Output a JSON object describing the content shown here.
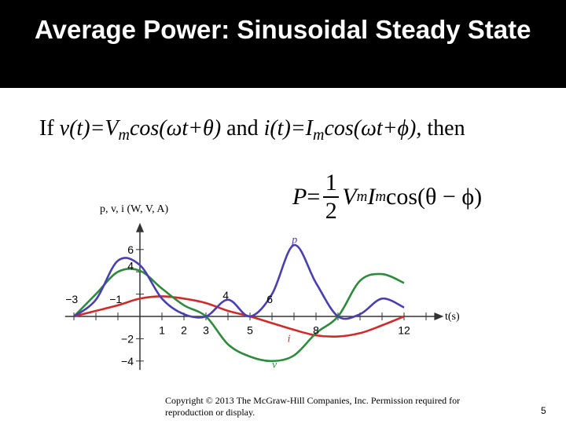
{
  "slide": {
    "title": "Average Power: Sinusoidal Steady State",
    "line": {
      "if": "If ",
      "v_def": "v(t)=V",
      "v_sub": "m",
      "v_rest": "cos(ωt+θ)",
      "and": " and ",
      "i_def": "i(t)=I",
      "i_sub": "m",
      "i_rest": "cos(ωt+ϕ),",
      "then": " then"
    },
    "formula": {
      "lhs": "P",
      "eq": " = ",
      "num": "1",
      "den": "2",
      "V": "V",
      "V_sub": "m",
      "I": "I",
      "I_sub": "m",
      "cos": " cos(θ − ϕ)"
    },
    "copyright": "Copyright © 2013 The McGraw-Hill Companies, Inc. Permission required for reproduction or display.",
    "page_number": "5"
  },
  "chart_data": {
    "type": "line",
    "xlabel": "t(s)",
    "ylabel": "p, v, i (W, V, A)",
    "x_tick_labels": [
      "−3",
      "−1",
      "1",
      "2",
      "3",
      "4",
      "5",
      "6",
      "8",
      "12"
    ],
    "y_tick_labels": [
      "6",
      "4",
      "−2",
      "−4"
    ],
    "xlim": [
      -3.4,
      13.8
    ],
    "ylim": [
      -4.8,
      8.4
    ],
    "series": [
      {
        "name": "p",
        "color": "#4a3fb0",
        "x": [
          -3,
          -2,
          -1,
          0,
          1,
          2,
          3,
          4,
          5,
          6,
          7,
          8,
          9,
          10,
          11,
          12
        ],
        "y": [
          0,
          1.5,
          5,
          4.6,
          1.6,
          0.2,
          0,
          1.5,
          0,
          2,
          6.4,
          3,
          0,
          0.2,
          1.6,
          0.8
        ]
      },
      {
        "name": "v",
        "color": "#2e8b3e",
        "x": [
          -3,
          -2,
          -1,
          0,
          1,
          2,
          3,
          4,
          5,
          6,
          7,
          8,
          9,
          10,
          11,
          12
        ],
        "y": [
          0,
          2,
          4,
          4.1,
          2.5,
          1,
          0,
          -2.5,
          -3.6,
          -4,
          -3.5,
          -1.5,
          0,
          3.2,
          3.8,
          3
        ]
      },
      {
        "name": "i",
        "color": "#d02a2a",
        "x": [
          -3,
          -2,
          -1,
          0,
          1,
          2,
          3,
          4,
          5,
          6,
          7,
          8,
          9,
          10,
          11,
          12
        ],
        "y": [
          0,
          0.5,
          1,
          1.6,
          1.8,
          1.6,
          1.2,
          0.5,
          0,
          -0.6,
          -1.2,
          -1.7,
          -1.8,
          -1.5,
          -0.8,
          0
        ]
      }
    ]
  }
}
